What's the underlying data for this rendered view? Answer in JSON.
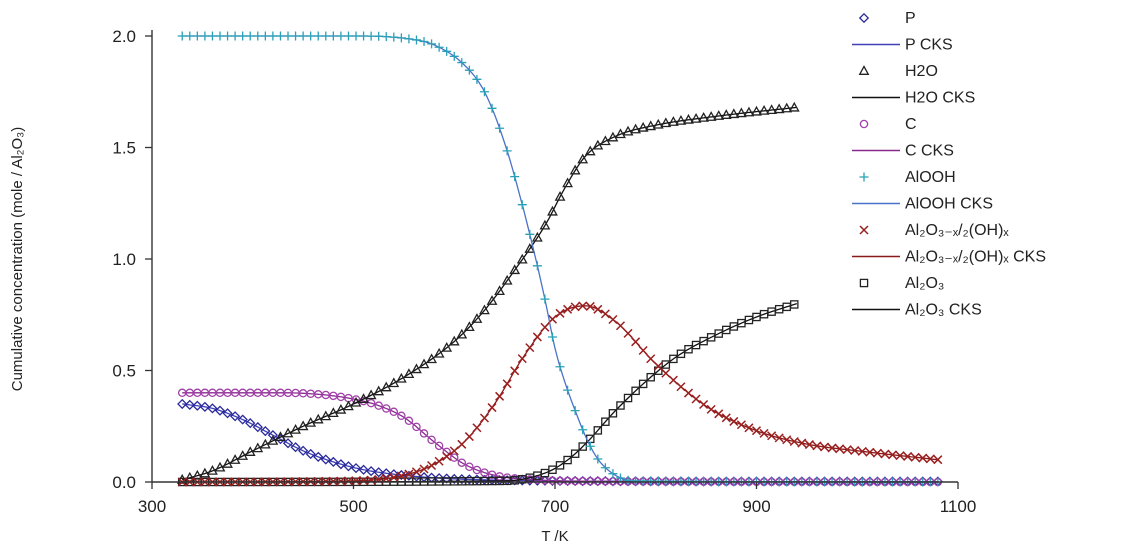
{
  "chart_data": {
    "type": "line",
    "xlabel": "T /K",
    "ylabel": "Cumulative concentration (mole / Al₂O₃)",
    "xlim": [
      300,
      1100
    ],
    "ylim": [
      0,
      2
    ],
    "xticks": [
      "300",
      "500",
      "700",
      "900",
      "1100"
    ],
    "yticks": [
      "0.0",
      "0.5",
      "1.0",
      "1.5",
      "2.0"
    ],
    "grid": false,
    "legend_position": "top-right",
    "series": [
      {
        "name": "P",
        "fit_name": "P CKS",
        "marker": "diamond",
        "marker_color": "#2a2a9a",
        "line_color": "#4040b8",
        "x": [
          330,
          360,
          390,
          420,
          450,
          480,
          510,
          540,
          570,
          600,
          650,
          700,
          800,
          900,
          1080
        ],
        "values": [
          0.35,
          0.33,
          0.28,
          0.21,
          0.14,
          0.09,
          0.055,
          0.035,
          0.022,
          0.014,
          0.008,
          0.005,
          0.003,
          0.002,
          0.002
        ]
      },
      {
        "name": "H2O",
        "fit_name": "H2O CKS",
        "marker": "triangle",
        "marker_color": "#222222",
        "line_color": "#111111",
        "x": [
          330,
          360,
          400,
          450,
          500,
          550,
          600,
          630,
          660,
          690,
          710,
          730,
          760,
          800,
          860,
          940
        ],
        "values": [
          0.01,
          0.05,
          0.14,
          0.25,
          0.35,
          0.47,
          0.63,
          0.77,
          0.95,
          1.15,
          1.32,
          1.46,
          1.55,
          1.6,
          1.64,
          1.68
        ]
      },
      {
        "name": "C",
        "fit_name": "C CKS",
        "marker": "circle",
        "marker_color": "#a040a8",
        "line_color": "#8a2a90",
        "x": [
          330,
          380,
          430,
          460,
          490,
          520,
          550,
          580,
          610,
          640,
          680,
          750,
          1080
        ],
        "values": [
          0.4,
          0.4,
          0.4,
          0.395,
          0.38,
          0.35,
          0.29,
          0.18,
          0.08,
          0.03,
          0.01,
          0.003,
          0.0
        ]
      },
      {
        "name": "AlOOH",
        "fit_name": "AlOOH CKS",
        "marker": "plus",
        "marker_color": "#2aa0b8",
        "line_color": "#4a72c8",
        "x": [
          330,
          400,
          500,
          550,
          580,
          610,
          630,
          650,
          670,
          690,
          700,
          720,
          740,
          760,
          780,
          1080
        ],
        "values": [
          2.0,
          2.0,
          2.0,
          1.99,
          1.96,
          1.87,
          1.75,
          1.52,
          1.2,
          0.82,
          0.6,
          0.32,
          0.12,
          0.03,
          0.005,
          0.0
        ]
      },
      {
        "name": "Al₂O₃₋ₓ/₂(OH)ₓ",
        "fit_name": "Al₂O₃₋ₓ/₂(OH)ₓ CKS",
        "marker": "x",
        "marker_color": "#9a1f1f",
        "line_color": "#8a1a1a",
        "x": [
          330,
          500,
          550,
          580,
          610,
          640,
          670,
          700,
          730,
          760,
          800,
          850,
          900,
          950,
          1000,
          1080
        ],
        "values": [
          0.0,
          0.005,
          0.03,
          0.08,
          0.18,
          0.35,
          0.57,
          0.74,
          0.79,
          0.72,
          0.53,
          0.34,
          0.23,
          0.17,
          0.14,
          0.1
        ]
      },
      {
        "name": "Al₂O₃",
        "fit_name": "Al₂O₃ CKS",
        "marker": "square",
        "marker_color": "#222222",
        "line_color": "#111111",
        "x": [
          330,
          650,
          690,
          710,
          730,
          760,
          790,
          820,
          860,
          900,
          940
        ],
        "values": [
          0.0,
          0.005,
          0.04,
          0.09,
          0.17,
          0.32,
          0.45,
          0.56,
          0.66,
          0.74,
          0.8
        ]
      }
    ]
  }
}
